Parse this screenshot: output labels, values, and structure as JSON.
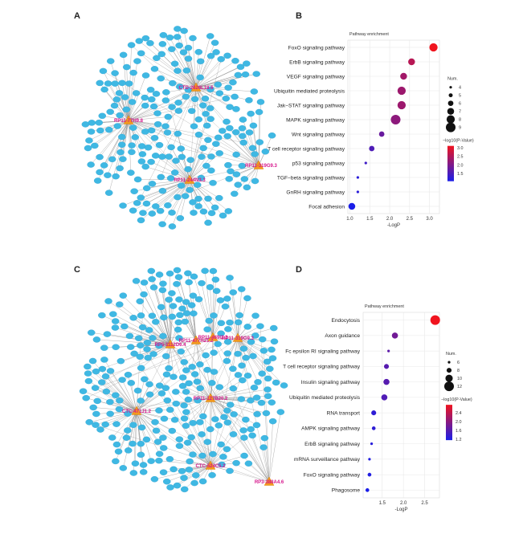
{
  "panels": {
    "A": "A",
    "B": "B",
    "C": "C",
    "D": "D"
  },
  "network_A": {
    "hubs": [
      {
        "label": "CTD-2626L18.6"
      },
      {
        "label": "RP11-77H9.8"
      },
      {
        "label": "RP11-244N3.3"
      },
      {
        "label": "RP11-319G9.3"
      }
    ],
    "node_color": "#3fb8e3",
    "hub_color": "#f39a1e",
    "edge_color": "#8a8a8a"
  },
  "network_C": {
    "hubs": [
      {
        "label": "RP11-469I2.2"
      },
      {
        "label": "RP5-1112D6.4"
      },
      {
        "label": "RP11-477H21.2"
      },
      {
        "label": "RP11-319G9.3"
      },
      {
        "label": "RP11-127B20.2"
      },
      {
        "label": "CTC-471J1.2"
      },
      {
        "label": "CTC-524C5.2"
      },
      {
        "label": "RP3-388A4.6"
      }
    ],
    "node_color": "#3fb8e3",
    "hub_color": "#f39a1e",
    "edge_color": "#8a8a8a"
  },
  "chart_data": [
    {
      "type": "scatter",
      "panel": "B",
      "title": "Pathway enrichment",
      "xlabel": "-LogP",
      "ylabel": "",
      "xlim": [
        0.95,
        3.25
      ],
      "xticks": [
        1.0,
        1.5,
        2.0,
        2.5,
        3.0
      ],
      "grid": true,
      "categories": [
        "FoxO signaling pathway",
        "ErbB signaling pathway",
        "VEGF signaling pathway",
        "Ubiquitin mediated proteolysis",
        "Jak−STAT signaling pathway",
        "MAPK signaling pathway",
        "Wnt signaling pathway",
        "T cell receptor signaling pathway",
        "p53 signaling pathway",
        "TGF−beta signaling pathway",
        "GnRH signaling pathway",
        "Focal adhesion"
      ],
      "x": [
        3.1,
        2.55,
        2.35,
        2.3,
        2.3,
        2.15,
        1.8,
        1.55,
        1.4,
        1.2,
        1.2,
        1.05
      ],
      "num": [
        8,
        7,
        7,
        8,
        8,
        9,
        6,
        6,
        4,
        4,
        4,
        7
      ],
      "color_value": [
        3.1,
        2.55,
        2.35,
        2.3,
        2.3,
        2.15,
        1.8,
        1.55,
        1.4,
        1.2,
        1.2,
        1.05
      ],
      "size_legend": {
        "title": "Num.",
        "values": [
          4,
          5,
          6,
          7,
          8,
          9
        ]
      },
      "color_legend": {
        "title": "−log10(P-Value)",
        "ticks": [
          3.0,
          2.5,
          2.0,
          1.5
        ],
        "range": [
          1.05,
          3.1
        ],
        "low_color": "#1a1ee8",
        "high_color": "#f0141e"
      },
      "legend": "right"
    },
    {
      "type": "scatter",
      "panel": "D",
      "title": "Pathway enrichment",
      "xlabel": "-LogP",
      "ylabel": "",
      "xlim": [
        1.05,
        2.85
      ],
      "xticks": [
        1.5,
        2.0,
        2.5
      ],
      "grid": true,
      "categories": [
        "Endocytosis",
        "Axon guidance",
        "Fc epsilon RI signaling pathway",
        "T cell receptor signaling pathway",
        "Insulin signaling pathway",
        "Ubiquitin mediated proteolysis",
        "RNA transport",
        "AMPK signaling pathway",
        "ErbB signaling pathway",
        "mRNA surveillance pathway",
        "FoxO signaling pathway",
        "Phagosome"
      ],
      "x": [
        2.75,
        1.8,
        1.65,
        1.6,
        1.6,
        1.55,
        1.3,
        1.3,
        1.25,
        1.2,
        1.2,
        1.15
      ],
      "num": [
        12,
        9,
        6,
        8,
        9,
        9,
        8,
        7,
        6,
        6,
        7,
        7
      ],
      "color_value": [
        2.75,
        1.8,
        1.65,
        1.6,
        1.6,
        1.55,
        1.3,
        1.3,
        1.25,
        1.2,
        1.2,
        1.15
      ],
      "size_legend": {
        "title": "Num.",
        "values": [
          6,
          8,
          10,
          12
        ]
      },
      "color_legend": {
        "title": "−log10(P-Value)",
        "ticks": [
          2.4,
          2.0,
          1.6,
          1.2
        ],
        "range": [
          1.15,
          2.75
        ],
        "low_color": "#1a1ee8",
        "high_color": "#f0141e"
      },
      "legend": "right"
    }
  ]
}
